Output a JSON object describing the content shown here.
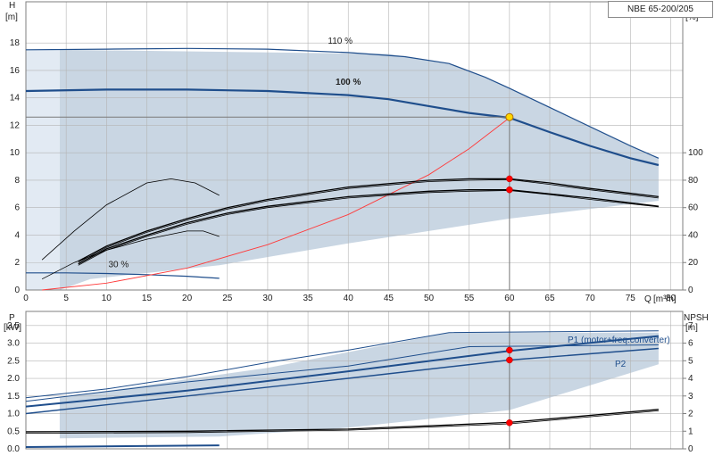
{
  "model": "NBE 65-200/205",
  "colors": {
    "envelope": "#c9d6e3",
    "envelope_light": "#e2eaf3",
    "curve": "#1f4e8c",
    "efficiency": "#000000",
    "system_curve": "#ff3b3b",
    "duty_point": "#ff0000",
    "operating_point": "#ffd700",
    "grid": "#b4b4b4"
  },
  "top_panel": {
    "y_left_label": "H",
    "y_left_unit": "[m]",
    "y_right_label": "eta",
    "y_right_unit": "[%]",
    "x_label": "Q",
    "x_unit": "[m³/h]"
  },
  "bottom_panel": {
    "y_left_label": "P",
    "y_left_unit": "[kW]",
    "y_right_label": "NPSH",
    "y_right_unit": "[m]"
  },
  "chart_data": [
    {
      "type": "line",
      "panel": "head",
      "x_ticks": [
        0,
        5,
        10,
        15,
        20,
        25,
        30,
        35,
        40,
        45,
        50,
        55,
        60,
        65,
        70,
        75,
        80
      ],
      "y_left_ticks": [
        0,
        2,
        4,
        6,
        8,
        10,
        12,
        14,
        16,
        18
      ],
      "y_right_ticks": [
        0,
        20,
        40,
        60,
        80,
        100
      ],
      "xlim": [
        0,
        81.5
      ],
      "ylim": [
        0,
        21
      ],
      "grid": true,
      "curve_labels": {
        "full": "100 %",
        "max": "110 %",
        "min": "30 %"
      },
      "envelope": [
        [
          4.2,
          0
        ],
        [
          4.2,
          17.5
        ],
        [
          45,
          17.2
        ],
        [
          52.5,
          16.5
        ],
        [
          59,
          15
        ],
        [
          78.5,
          9.6
        ],
        [
          78.5,
          6.5
        ],
        [
          60,
          5.2
        ],
        [
          40,
          3.4
        ],
        [
          24,
          1.8
        ],
        [
          8,
          0.8
        ],
        [
          4.2,
          0
        ]
      ],
      "envelope_light": [
        [
          0,
          0
        ],
        [
          0,
          17.5
        ],
        [
          4.2,
          17.5
        ],
        [
          4.2,
          0
        ]
      ],
      "series": [
        {
          "role": "head_110",
          "values": [
            [
              0,
              17.5
            ],
            [
              10,
              17.55
            ],
            [
              20,
              17.6
            ],
            [
              30,
              17.55
            ],
            [
              40,
              17.3
            ],
            [
              47,
              17.0
            ],
            [
              52.5,
              16.5
            ],
            [
              57,
              15.5
            ],
            [
              60,
              14.7
            ],
            [
              65,
              13.3
            ],
            [
              70,
              11.9
            ],
            [
              75,
              10.5
            ],
            [
              78.5,
              9.6
            ]
          ]
        },
        {
          "role": "head_100",
          "values": [
            [
              0,
              14.5
            ],
            [
              10,
              14.6
            ],
            [
              20,
              14.6
            ],
            [
              30,
              14.5
            ],
            [
              40,
              14.2
            ],
            [
              45,
              13.9
            ],
            [
              50,
              13.4
            ],
            [
              55,
              12.9
            ],
            [
              60,
              12.55
            ],
            [
              65,
              11.5
            ],
            [
              70,
              10.5
            ],
            [
              75,
              9.6
            ],
            [
              78.5,
              9.1
            ]
          ]
        },
        {
          "role": "head_30",
          "values": [
            [
              0,
              1.25
            ],
            [
              5,
              1.25
            ],
            [
              10,
              1.2
            ],
            [
              15,
              1.12
            ],
            [
              20,
              1.0
            ],
            [
              24,
              0.85
            ]
          ]
        },
        {
          "role": "system_curve",
          "values": [
            [
              2,
              0
            ],
            [
              10,
              0.5
            ],
            [
              20,
              1.6
            ],
            [
              30,
              3.3
            ],
            [
              40,
              5.5
            ],
            [
              50,
              8.4
            ],
            [
              55,
              10.3
            ],
            [
              60,
              12.55
            ]
          ]
        },
        {
          "role": "eta_upper",
          "values": [
            [
              6.5,
              2.1
            ],
            [
              10,
              3.2
            ],
            [
              15,
              4.3
            ],
            [
              20,
              5.2
            ],
            [
              25,
              6.0
            ],
            [
              30,
              6.6
            ],
            [
              40,
              7.5
            ],
            [
              50,
              8.0
            ],
            [
              55,
              8.1
            ],
            [
              60,
              8.1
            ],
            [
              65,
              7.8
            ],
            [
              70,
              7.4
            ],
            [
              78.5,
              6.8
            ]
          ]
        },
        {
          "role": "eta_upper_b",
          "values": [
            [
              6.5,
              2.0
            ],
            [
              10,
              3.1
            ],
            [
              15,
              4.2
            ],
            [
              20,
              5.1
            ],
            [
              25,
              5.9
            ],
            [
              30,
              6.5
            ],
            [
              40,
              7.4
            ],
            [
              50,
              7.9
            ],
            [
              55,
              8.0
            ],
            [
              60,
              8.05
            ],
            [
              65,
              7.7
            ],
            [
              70,
              7.3
            ],
            [
              78.5,
              6.7
            ]
          ]
        },
        {
          "role": "eta_lower",
          "values": [
            [
              6.5,
              1.9
            ],
            [
              10,
              3.0
            ],
            [
              15,
              4.0
            ],
            [
              20,
              4.9
            ],
            [
              25,
              5.6
            ],
            [
              30,
              6.1
            ],
            [
              40,
              6.8
            ],
            [
              50,
              7.2
            ],
            [
              55,
              7.3
            ],
            [
              60,
              7.3
            ],
            [
              65,
              7.0
            ],
            [
              70,
              6.7
            ],
            [
              78.5,
              6.1
            ]
          ]
        },
        {
          "role": "eta_lower_b",
          "values": [
            [
              6.5,
              1.8
            ],
            [
              10,
              2.9
            ],
            [
              15,
              3.9
            ],
            [
              20,
              4.8
            ],
            [
              25,
              5.5
            ],
            [
              30,
              6.0
            ],
            [
              40,
              6.7
            ],
            [
              50,
              7.1
            ],
            [
              55,
              7.2
            ],
            [
              60,
              7.25
            ],
            [
              65,
              6.95
            ],
            [
              70,
              6.6
            ],
            [
              78.5,
              6.05
            ]
          ]
        },
        {
          "role": "eta_low_speed",
          "values": [
            [
              2,
              0.8
            ],
            [
              6,
              2.0
            ],
            [
              10,
              2.9
            ],
            [
              15,
              3.7
            ],
            [
              20,
              4.3
            ],
            [
              22,
              4.3
            ],
            [
              24,
              3.9
            ]
          ]
        },
        {
          "role": "eta_low_speed_b",
          "values": [
            [
              2,
              2.2
            ],
            [
              6,
              4.3
            ],
            [
              10,
              6.2
            ],
            [
              15,
              7.8
            ],
            [
              18,
              8.1
            ],
            [
              21,
              7.8
            ],
            [
              24,
              6.9
            ]
          ]
        }
      ],
      "duty_points": [
        [
          60,
          8.1
        ],
        [
          60,
          7.3
        ]
      ],
      "operating_point": [
        60,
        12.6
      ]
    },
    {
      "type": "line",
      "panel": "power_npsh",
      "y_left_ticks": [
        0,
        0.5,
        1.0,
        1.5,
        2.0,
        2.5,
        3.0,
        3.5
      ],
      "y_left_tick_labels": [
        "0.0",
        "0.5",
        "1.0",
        "1.5",
        "2.0",
        "2.5",
        "3.0",
        "3.5"
      ],
      "y_right_ticks": [
        0,
        1,
        2,
        3,
        4,
        5,
        6,
        7
      ],
      "ylim": [
        0,
        3.9
      ],
      "grid": true,
      "series_labels": {
        "p1": "P1 (motor+freq.converter)",
        "p2": "P2"
      },
      "envelope": [
        [
          4.2,
          0.3
        ],
        [
          4.2,
          1.45
        ],
        [
          30,
          2.3
        ],
        [
          52.5,
          3.3
        ],
        [
          78.5,
          3.3
        ],
        [
          78.5,
          2.4
        ],
        [
          60,
          1.1
        ],
        [
          40,
          0.6
        ],
        [
          24,
          0.35
        ],
        [
          4.2,
          0.3
        ]
      ],
      "series": [
        {
          "role": "p1_110",
          "values": [
            [
              0,
              1.45
            ],
            [
              10,
              1.7
            ],
            [
              20,
              2.05
            ],
            [
              30,
              2.45
            ],
            [
              40,
              2.8
            ],
            [
              52.5,
              3.3
            ],
            [
              78.5,
              3.35
            ]
          ]
        },
        {
          "role": "p1_100",
          "values": [
            [
              0,
              1.2
            ],
            [
              20,
              1.65
            ],
            [
              40,
              2.2
            ],
            [
              60,
              2.78
            ],
            [
              78.5,
              3.2
            ]
          ]
        },
        {
          "role": "p2_110",
          "values": [
            [
              0,
              1.35
            ],
            [
              20,
              1.9
            ],
            [
              40,
              2.35
            ],
            [
              55,
              2.9
            ],
            [
              78.5,
              2.95
            ]
          ]
        },
        {
          "role": "p2_100",
          "values": [
            [
              0,
              1.0
            ],
            [
              20,
              1.5
            ],
            [
              40,
              2.0
            ],
            [
              60,
              2.52
            ],
            [
              78.5,
              2.85
            ]
          ]
        },
        {
          "role": "npsh_a",
          "values": [
            [
              0,
              0.48
            ],
            [
              20,
              0.5
            ],
            [
              40,
              0.56
            ],
            [
              60,
              0.75
            ],
            [
              78.5,
              1.12
            ]
          ]
        },
        {
          "role": "npsh_b",
          "values": [
            [
              0,
              0.44
            ],
            [
              20,
              0.46
            ],
            [
              40,
              0.53
            ],
            [
              60,
              0.71
            ],
            [
              78.5,
              1.08
            ]
          ]
        },
        {
          "role": "p_30",
          "values": [
            [
              0,
              0.05
            ],
            [
              24,
              0.1
            ]
          ]
        }
      ],
      "duty_points": [
        [
          60,
          2.8
        ],
        [
          60,
          2.52
        ],
        [
          60,
          0.74
        ]
      ]
    }
  ]
}
